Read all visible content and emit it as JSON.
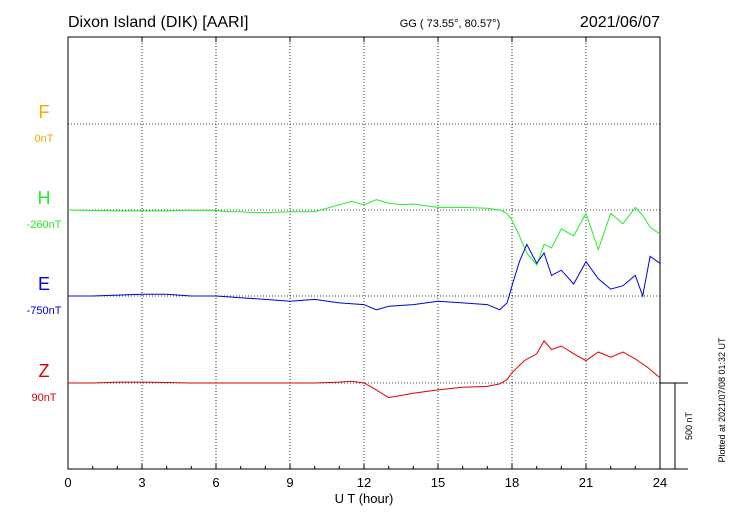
{
  "header": {
    "station": "Dixon Island (DIK)  [AARI]",
    "coords": "GG ( 73.55°,  80.57°)",
    "date": "2021/06/07"
  },
  "chart_data": {
    "type": "line",
    "xlabel": "U T (hour)",
    "xlim": [
      0,
      24
    ],
    "xticks": [
      "0",
      "3",
      "6",
      "9",
      "12",
      "15",
      "18",
      "21",
      "24"
    ],
    "scale_bar": {
      "label": "500 nT",
      "value": 500
    },
    "plotted_note": "Plotted at 2021/07/08 01:32 UT",
    "grid": true,
    "channels": [
      {
        "name": "F",
        "baseline": "0nT",
        "color": "#ffa500",
        "has_data": false,
        "x": [],
        "y": []
      },
      {
        "name": "H",
        "baseline": "-260nT",
        "color": "#22ee22",
        "has_data": true,
        "x": [
          0,
          1,
          2,
          3,
          4,
          5,
          6,
          6.5,
          7,
          7.5,
          8,
          9,
          10,
          11,
          11.5,
          12,
          12.5,
          13,
          13.5,
          14,
          15,
          16,
          17,
          17.5,
          17.8,
          18,
          18.3,
          18.6,
          19,
          19.3,
          19.6,
          20,
          20.5,
          21,
          21.5,
          22,
          22.5,
          23,
          23.3,
          23.6,
          24
        ],
        "y": [
          0,
          -3,
          -5,
          -5,
          -5,
          -2,
          -3,
          -10,
          -10,
          -15,
          -15,
          -10,
          -10,
          30,
          50,
          30,
          60,
          40,
          30,
          35,
          15,
          15,
          10,
          0,
          -20,
          -60,
          -150,
          -250,
          -320,
          -200,
          -220,
          -110,
          -150,
          -20,
          -230,
          -20,
          -80,
          15,
          -30,
          -100,
          -140
        ]
      },
      {
        "name": "E",
        "baseline": "-750nT",
        "color": "#0000dd",
        "has_data": true,
        "x": [
          0,
          1,
          2,
          3,
          4,
          5,
          6,
          7,
          8,
          9,
          10,
          11,
          12,
          12.5,
          13,
          14,
          15,
          16,
          17,
          17.5,
          17.8,
          18,
          18.3,
          18.6,
          19,
          19.3,
          19.6,
          20,
          20.5,
          21,
          21.5,
          22,
          22.5,
          23,
          23.3,
          23.6,
          24
        ],
        "y": [
          0,
          0,
          5,
          10,
          10,
          0,
          0,
          -10,
          -20,
          -30,
          -20,
          -40,
          -50,
          -80,
          -60,
          -50,
          -30,
          -40,
          -50,
          -80,
          -40,
          60,
          200,
          300,
          190,
          250,
          120,
          150,
          70,
          200,
          100,
          40,
          60,
          120,
          0,
          230,
          190
        ]
      },
      {
        "name": "Z",
        "baseline": "90nT",
        "color": "#dd0000",
        "has_data": true,
        "x": [
          0,
          1,
          2,
          3,
          4,
          5,
          6,
          7,
          8,
          9,
          10,
          11,
          11.5,
          12,
          12.5,
          13,
          14,
          15,
          16,
          17,
          17.5,
          17.8,
          18,
          18.5,
          19,
          19.3,
          19.6,
          20,
          20.5,
          21,
          21.5,
          22,
          22.5,
          23,
          23.5,
          24
        ],
        "y": [
          0,
          0,
          5,
          5,
          3,
          0,
          0,
          0,
          0,
          0,
          0,
          5,
          10,
          0,
          -40,
          -85,
          -60,
          -40,
          -25,
          -20,
          -5,
          20,
          60,
          130,
          170,
          245,
          195,
          215,
          170,
          130,
          180,
          150,
          180,
          140,
          90,
          30
        ]
      }
    ]
  }
}
